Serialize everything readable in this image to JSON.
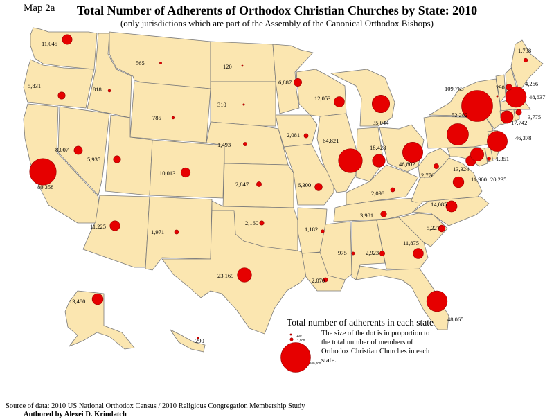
{
  "header": {
    "map_label": "Map 2a",
    "title": "Total Number of Adherents of Orthodox Christian Churches by State: 2010",
    "subtitle": "(only jurisdictions which are part of the Assembly of the Canonical Orthodox Bishops)"
  },
  "colors": {
    "state_fill": "#fbe6b0",
    "state_stroke": "#7a7a7a",
    "dot_fill": "#e60000",
    "dot_stroke": "#990000"
  },
  "states": [
    {
      "name": "WA",
      "value": 11045,
      "label": "11,045"
    },
    {
      "name": "OR",
      "value": 5831,
      "label": "5,831"
    },
    {
      "name": "CA",
      "value": 80358,
      "label": "80,358"
    },
    {
      "name": "NV",
      "value": 8007,
      "label": "8,007"
    },
    {
      "name": "ID",
      "value": 818,
      "label": "818"
    },
    {
      "name": "MT",
      "value": 565,
      "label": "565"
    },
    {
      "name": "WY",
      "value": 785,
      "label": "785"
    },
    {
      "name": "UT",
      "value": 5935,
      "label": "5,935"
    },
    {
      "name": "AZ",
      "value": 11225,
      "label": "11,225"
    },
    {
      "name": "CO",
      "value": 10013,
      "label": "10,013"
    },
    {
      "name": "NM",
      "value": 1971,
      "label": "1,971"
    },
    {
      "name": "ND",
      "value": 120,
      "label": "120"
    },
    {
      "name": "SD",
      "value": 310,
      "label": "310"
    },
    {
      "name": "NE",
      "value": 1493,
      "label": "1,493"
    },
    {
      "name": "KS",
      "value": 2847,
      "label": "2,847"
    },
    {
      "name": "OK",
      "value": 2160,
      "label": "2,160"
    },
    {
      "name": "TX",
      "value": 23169,
      "label": "23,169"
    },
    {
      "name": "MN",
      "value": 6887,
      "label": "6,887"
    },
    {
      "name": "IA",
      "value": 2081,
      "label": "2,081"
    },
    {
      "name": "MO",
      "value": 6300,
      "label": "6,300"
    },
    {
      "name": "AR",
      "value": 1182,
      "label": "1,182"
    },
    {
      "name": "LA",
      "value": 2070,
      "label": "2,070"
    },
    {
      "name": "WI",
      "value": 12053,
      "label": "12,053"
    },
    {
      "name": "IL",
      "value": 64821,
      "label": "64,821"
    },
    {
      "name": "MI",
      "value": 35044,
      "label": "35,044"
    },
    {
      "name": "IN",
      "value": 18428,
      "label": "18,428"
    },
    {
      "name": "OH",
      "value": 46802,
      "label": "46,802"
    },
    {
      "name": "KY",
      "value": 2098,
      "label": "2,098"
    },
    {
      "name": "TN",
      "value": 3981,
      "label": "3,981"
    },
    {
      "name": "MS",
      "value": 975,
      "label": "975"
    },
    {
      "name": "AL",
      "value": 2923,
      "label": "2,923"
    },
    {
      "name": "GA",
      "value": 11875,
      "label": "11,875"
    },
    {
      "name": "FL",
      "value": 48065,
      "label": "48,065"
    },
    {
      "name": "SC",
      "value": 5227,
      "label": "5,227"
    },
    {
      "name": "NC",
      "value": 14085,
      "label": "14,085"
    },
    {
      "name": "VA",
      "value": 13324,
      "label": "13,324"
    },
    {
      "name": "WV",
      "value": 2776,
      "label": "2,776"
    },
    {
      "name": "PA",
      "value": 52282,
      "label": "52,282"
    },
    {
      "name": "NY",
      "value": 109763,
      "label": "109,763"
    },
    {
      "name": "NJ",
      "value": 46378,
      "label": "46,378"
    },
    {
      "name": "DE",
      "value": 1351,
      "label": "1,351"
    },
    {
      "name": "MD",
      "value": 11900,
      "label": "11,900"
    },
    {
      "name": "DC",
      "value": 20235,
      "label": "20,235"
    },
    {
      "name": "CT",
      "value": 17742,
      "label": "17,742"
    },
    {
      "name": "RI",
      "value": 3775,
      "label": "3,775"
    },
    {
      "name": "MA",
      "value": 48637,
      "label": "48,637"
    },
    {
      "name": "VT",
      "value": 290,
      "label": "290"
    },
    {
      "name": "NH",
      "value": 4266,
      "label": "4,266"
    },
    {
      "name": "ME",
      "value": 1738,
      "label": "1,738"
    },
    {
      "name": "AK",
      "value": 13480,
      "label": "13,480"
    },
    {
      "name": "HI",
      "value": 290,
      "label": "290"
    }
  ],
  "legend": {
    "title": "Total number of adherents in each state",
    "description": "The size of the dot is in proportion to the total number of members of Orthodox Christian Churches in each state.",
    "entries": [
      {
        "value": 100,
        "label": "100"
      },
      {
        "value": 1000,
        "label": "1,000"
      },
      {
        "value": 100000,
        "label": "100,000"
      }
    ]
  },
  "footer": {
    "source": "Source of data: 2010 US National Orthodox Census / 2010 Religious Congregation Membership Study",
    "author": "Authored   by Alexei D. Krindatch"
  }
}
